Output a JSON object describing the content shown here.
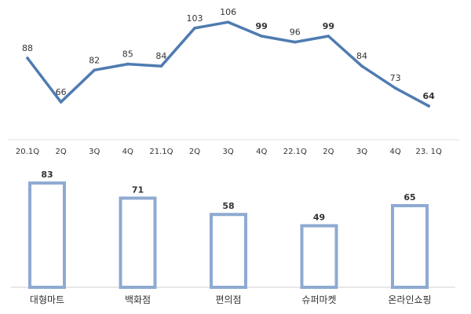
{
  "chart_data": [
    {
      "type": "line",
      "categories": [
        "20.1Q",
        "2Q",
        "3Q",
        "4Q",
        "21.1Q",
        "2Q",
        "3Q",
        "4Q",
        "22.1Q",
        "2Q",
        "3Q",
        "4Q",
        "23. 1Q"
      ],
      "values": [
        88,
        66,
        82,
        85,
        84,
        103,
        106,
        99,
        96,
        99,
        84,
        73,
        64
      ],
      "ylim": [
        55,
        110
      ],
      "grid": false,
      "legend": "none",
      "colors": {
        "line": "#4f7bb1",
        "highlight_label": "#a31515"
      }
    },
    {
      "type": "bar",
      "categories": [
        "대형마트",
        "백화점",
        "편의점",
        "슈퍼마켓",
        "온라인쇼핑"
      ],
      "values": [
        83,
        71,
        58,
        49,
        65
      ],
      "ylim": [
        0,
        90
      ],
      "grid": false,
      "legend": "none",
      "colors": {
        "bar_stroke": "#8eaad2",
        "bar_fill": "#ffffff",
        "axis": "#d0d0d0"
      }
    }
  ]
}
